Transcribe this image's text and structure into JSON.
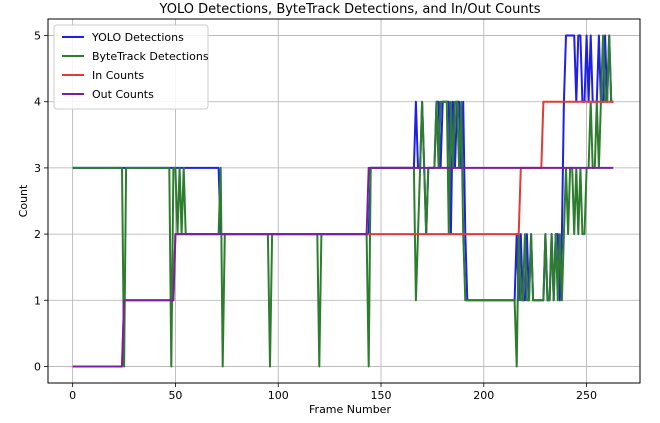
{
  "chart_data": {
    "type": "line",
    "title": "YOLO Detections, ByteTrack Detections, and In/Out Counts",
    "xlabel": "Frame Number",
    "ylabel": "Count",
    "xlim": [
      -12,
      276
    ],
    "ylim": [
      -0.25,
      5.25
    ],
    "xticks": [
      0,
      50,
      100,
      150,
      200,
      250
    ],
    "yticks": [
      0,
      1,
      2,
      3,
      4,
      5
    ],
    "grid": true,
    "legend_position": "top-left",
    "series": [
      {
        "name": "YOLO Detections",
        "color": "#1f1fe6",
        "points": [
          [
            0,
            3
          ],
          [
            24,
            3
          ],
          [
            25,
            3
          ],
          [
            26,
            3
          ],
          [
            27,
            3
          ],
          [
            47,
            3
          ],
          [
            48,
            3
          ],
          [
            49,
            3
          ],
          [
            52,
            3
          ],
          [
            53,
            3
          ],
          [
            55,
            3
          ],
          [
            71,
            3
          ],
          [
            72,
            2
          ],
          [
            96,
            2
          ],
          [
            120,
            2
          ],
          [
            144,
            2
          ],
          [
            145,
            3
          ],
          [
            166,
            3
          ],
          [
            167,
            4
          ],
          [
            168,
            3
          ],
          [
            169,
            3
          ],
          [
            170,
            4
          ],
          [
            171,
            3
          ],
          [
            172,
            2
          ],
          [
            173,
            3
          ],
          [
            176,
            3
          ],
          [
            177,
            4
          ],
          [
            178,
            4
          ],
          [
            179,
            3
          ],
          [
            180,
            4
          ],
          [
            183,
            4
          ],
          [
            184,
            2
          ],
          [
            185,
            4
          ],
          [
            186,
            3
          ],
          [
            187,
            4
          ],
          [
            188,
            4
          ],
          [
            189,
            3
          ],
          [
            190,
            4
          ],
          [
            191,
            2
          ],
          [
            192,
            1
          ],
          [
            214,
            1
          ],
          [
            215,
            1
          ],
          [
            216,
            2
          ],
          [
            217,
            1
          ],
          [
            218,
            2
          ],
          [
            219,
            1
          ],
          [
            220,
            1
          ],
          [
            221,
            2
          ],
          [
            222,
            1
          ],
          [
            223,
            2
          ],
          [
            224,
            1
          ],
          [
            225,
            1
          ],
          [
            229,
            1
          ],
          [
            230,
            2
          ],
          [
            231,
            1
          ],
          [
            232,
            1
          ],
          [
            233,
            2
          ],
          [
            234,
            1
          ],
          [
            235,
            2
          ],
          [
            236,
            2
          ],
          [
            237,
            1
          ],
          [
            238,
            2
          ],
          [
            239,
            4
          ],
          [
            240,
            5
          ],
          [
            244,
            5
          ],
          [
            245,
            4
          ],
          [
            246,
            5
          ],
          [
            247,
            5
          ],
          [
            248,
            4
          ],
          [
            249,
            4
          ],
          [
            250,
            5
          ],
          [
            251,
            4
          ],
          [
            252,
            5
          ],
          [
            253,
            4
          ],
          [
            254,
            4
          ],
          [
            255,
            4
          ],
          [
            256,
            5
          ],
          [
            257,
            4
          ],
          [
            258,
            4
          ],
          [
            259,
            5
          ],
          [
            260,
            4
          ],
          [
            261,
            5
          ],
          [
            262,
            4
          ],
          [
            263,
            4
          ]
        ]
      },
      {
        "name": "ByteTrack Detections",
        "color": "#2e7d2e",
        "points": [
          [
            0,
            3
          ],
          [
            23,
            3
          ],
          [
            24,
            3
          ],
          [
            25,
            0
          ],
          [
            26,
            3
          ],
          [
            47,
            3
          ],
          [
            48,
            0
          ],
          [
            49,
            3
          ],
          [
            50,
            3
          ],
          [
            51,
            2
          ],
          [
            52,
            3
          ],
          [
            53,
            2
          ],
          [
            54,
            3
          ],
          [
            55,
            2
          ],
          [
            71,
            2
          ],
          [
            72,
            3
          ],
          [
            73,
            0
          ],
          [
            74,
            2
          ],
          [
            95,
            2
          ],
          [
            96,
            0
          ],
          [
            97,
            2
          ],
          [
            119,
            2
          ],
          [
            120,
            0
          ],
          [
            121,
            2
          ],
          [
            143,
            2
          ],
          [
            144,
            0
          ],
          [
            145,
            3
          ],
          [
            166,
            3
          ],
          [
            167,
            1
          ],
          [
            168,
            2
          ],
          [
            169,
            3
          ],
          [
            170,
            4
          ],
          [
            171,
            3
          ],
          [
            172,
            2
          ],
          [
            173,
            3
          ],
          [
            176,
            3
          ],
          [
            177,
            4
          ],
          [
            178,
            3
          ],
          [
            179,
            4
          ],
          [
            182,
            4
          ],
          [
            183,
            2
          ],
          [
            184,
            4
          ],
          [
            185,
            3
          ],
          [
            186,
            4
          ],
          [
            187,
            4
          ],
          [
            188,
            3
          ],
          [
            189,
            4
          ],
          [
            190,
            2
          ],
          [
            191,
            1
          ],
          [
            214,
            1
          ],
          [
            215,
            1
          ],
          [
            216,
            0
          ],
          [
            217,
            2
          ],
          [
            218,
            1
          ],
          [
            219,
            1
          ],
          [
            220,
            2
          ],
          [
            221,
            1
          ],
          [
            222,
            1
          ],
          [
            223,
            2
          ],
          [
            224,
            1
          ],
          [
            229,
            1
          ],
          [
            230,
            2
          ],
          [
            231,
            1
          ],
          [
            232,
            1
          ],
          [
            233,
            2
          ],
          [
            234,
            1
          ],
          [
            235,
            2
          ],
          [
            236,
            1
          ],
          [
            237,
            2
          ],
          [
            238,
            1
          ],
          [
            239,
            2
          ],
          [
            240,
            3
          ],
          [
            241,
            2
          ],
          [
            242,
            3
          ],
          [
            243,
            3
          ],
          [
            244,
            2
          ],
          [
            245,
            3
          ],
          [
            246,
            2
          ],
          [
            247,
            3
          ],
          [
            248,
            2
          ],
          [
            249,
            2
          ],
          [
            250,
            3
          ],
          [
            251,
            3
          ],
          [
            252,
            4
          ],
          [
            253,
            3
          ],
          [
            254,
            3
          ],
          [
            255,
            4
          ],
          [
            256,
            3
          ],
          [
            257,
            4
          ],
          [
            258,
            5
          ],
          [
            259,
            4
          ],
          [
            260,
            4
          ],
          [
            261,
            5
          ],
          [
            262,
            4
          ],
          [
            263,
            4
          ]
        ]
      },
      {
        "name": "In Counts",
        "color": "#e53935",
        "points": [
          [
            0,
            0
          ],
          [
            24,
            0
          ],
          [
            25,
            1
          ],
          [
            49,
            1
          ],
          [
            50,
            2
          ],
          [
            217,
            2
          ],
          [
            218,
            3
          ],
          [
            228,
            3
          ],
          [
            229,
            4
          ],
          [
            263,
            4
          ]
        ]
      },
      {
        "name": "Out Counts",
        "color": "#7b1fa2",
        "points": [
          [
            0,
            0
          ],
          [
            24,
            0
          ],
          [
            25,
            1
          ],
          [
            49,
            1
          ],
          [
            50,
            2
          ],
          [
            143,
            2
          ],
          [
            144,
            3
          ],
          [
            263,
            3
          ]
        ]
      }
    ]
  }
}
